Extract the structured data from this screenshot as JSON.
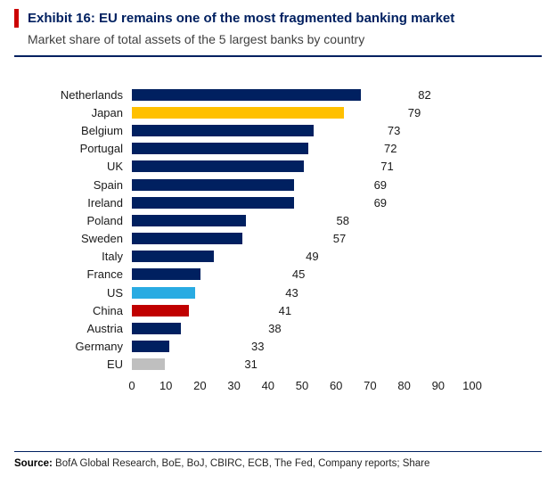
{
  "header": {
    "exhibit_title": "Exhibit 16: EU remains one of the most fragmented banking market",
    "subtitle": "Market share of total assets of the 5 largest banks by country",
    "accent_color": "#cc0000",
    "title_color": "#002060"
  },
  "chart_data": {
    "type": "bar",
    "orientation": "horizontal",
    "title": "Market share of total assets of the 5 largest banks by country",
    "categories": [
      "Netherlands",
      "Japan",
      "Belgium",
      "Portugal",
      "UK",
      "Spain",
      "Ireland",
      "Poland",
      "Sweden",
      "Italy",
      "France",
      "US",
      "China",
      "Austria",
      "Germany",
      "EU"
    ],
    "values": [
      82,
      79,
      73,
      72,
      71,
      69,
      69,
      58,
      57,
      49,
      45,
      43,
      41,
      38,
      33,
      31
    ],
    "colors": [
      "#002060",
      "#ffc000",
      "#002060",
      "#002060",
      "#002060",
      "#002060",
      "#002060",
      "#002060",
      "#002060",
      "#002060",
      "#002060",
      "#29abe2",
      "#c00000",
      "#002060",
      "#002060",
      "#bfbfbf"
    ],
    "highlight_colors": {
      "default": "#002060",
      "Japan": "#ffc000",
      "US": "#29abe2",
      "China": "#c00000",
      "EU": "#bfbfbf"
    },
    "xlim": [
      0,
      100
    ],
    "x_ticks": [
      0,
      10,
      20,
      30,
      40,
      50,
      60,
      70,
      80,
      90,
      100
    ],
    "xlabel": "",
    "ylabel": "",
    "grid": false,
    "legend": false,
    "value_labels": true
  },
  "footer": {
    "source_label": "Source:",
    "source_text": " BofA Global Research, BoE, BoJ, CBIRC, ECB, The Fed, Company reports; Share"
  }
}
